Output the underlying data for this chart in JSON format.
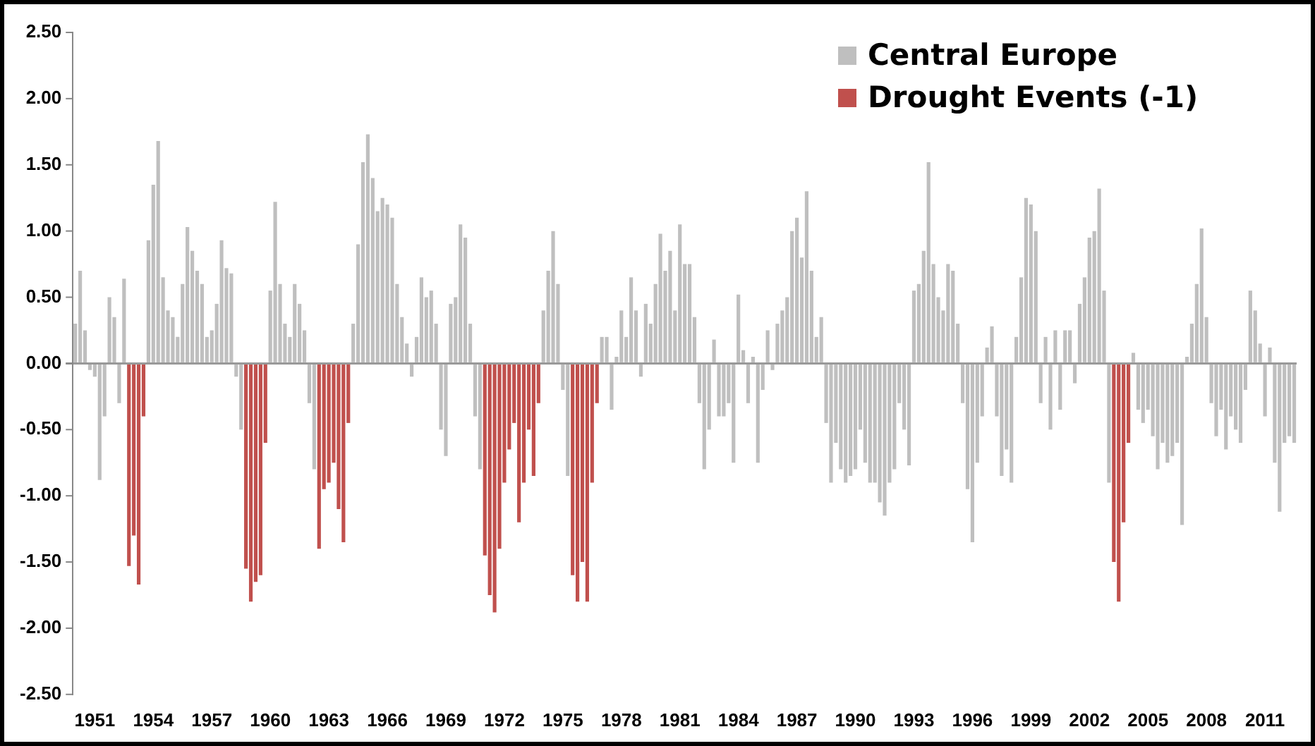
{
  "chart_data": {
    "type": "bar",
    "categories": [
      null,
      null,
      null,
      null,
      "1951",
      null,
      null,
      null,
      null,
      null,
      null,
      null,
      null,
      null,
      null,
      null,
      "1954",
      null,
      null,
      null,
      null,
      null,
      null,
      null,
      null,
      null,
      null,
      null,
      "1957",
      null,
      null,
      null,
      null,
      null,
      null,
      null,
      null,
      null,
      null,
      null,
      "1960",
      null,
      null,
      null,
      null,
      null,
      null,
      null,
      null,
      null,
      null,
      null,
      "1963",
      null,
      null,
      null,
      null,
      null,
      null,
      null,
      null,
      null,
      null,
      null,
      "1966",
      null,
      null,
      null,
      null,
      null,
      null,
      null,
      null,
      null,
      null,
      null,
      "1969",
      null,
      null,
      null,
      null,
      null,
      null,
      null,
      null,
      null,
      null,
      null,
      "1972",
      null,
      null,
      null,
      null,
      null,
      null,
      null,
      null,
      null,
      null,
      null,
      "1975",
      null,
      null,
      null,
      null,
      null,
      null,
      null,
      null,
      null,
      null,
      null,
      "1978",
      null,
      null,
      null,
      null,
      null,
      null,
      null,
      null,
      null,
      null,
      null,
      "1981",
      null,
      null,
      null,
      null,
      null,
      null,
      null,
      null,
      null,
      null,
      null,
      "1984",
      null,
      null,
      null,
      null,
      null,
      null,
      null,
      null,
      null,
      null,
      null,
      "1987",
      null,
      null,
      null,
      null,
      null,
      null,
      null,
      null,
      null,
      null,
      null,
      "1990",
      null,
      null,
      null,
      null,
      null,
      null,
      null,
      null,
      null,
      null,
      null,
      "1993",
      null,
      null,
      null,
      null,
      null,
      null,
      null,
      null,
      null,
      null,
      null,
      "1996",
      null,
      null,
      null,
      null,
      null,
      null,
      null,
      null,
      null,
      null,
      null,
      "1999",
      null,
      null,
      null,
      null,
      null,
      null,
      null,
      null,
      null,
      null,
      null,
      "2002",
      null,
      null,
      null,
      null,
      null,
      null,
      null,
      null,
      null,
      null,
      null,
      "2005",
      null,
      null,
      null,
      null,
      null,
      null,
      null,
      null,
      null,
      null,
      null,
      "2008",
      null,
      null,
      null,
      null,
      null,
      null,
      null,
      null,
      null,
      null,
      null,
      "2011",
      null,
      null,
      null,
      null,
      null,
      null
    ],
    "series": [
      {
        "name": "Central Europe",
        "color": "#bfbfbf",
        "values": [
          0.3,
          0.7,
          0.25,
          -0.05,
          -0.1,
          -0.88,
          -0.4,
          0.5,
          0.35,
          -0.3,
          0.64,
          null,
          null,
          null,
          null,
          0.93,
          1.35,
          1.68,
          0.65,
          0.4,
          0.35,
          0.2,
          0.6,
          1.03,
          0.85,
          0.7,
          0.6,
          0.2,
          0.25,
          0.45,
          0.93,
          0.72,
          0.68,
          -0.1,
          -0.5,
          null,
          null,
          null,
          null,
          null,
          0.55,
          1.22,
          0.6,
          0.3,
          0.2,
          0.6,
          0.45,
          0.25,
          -0.3,
          -0.8,
          null,
          null,
          null,
          null,
          null,
          null,
          null,
          0.3,
          0.9,
          1.52,
          1.73,
          1.4,
          1.15,
          1.25,
          1.2,
          1.1,
          0.6,
          0.35,
          0.15,
          -0.1,
          0.2,
          0.65,
          0.5,
          0.55,
          0.3,
          -0.5,
          -0.7,
          0.45,
          0.5,
          1.05,
          0.95,
          0.3,
          -0.4,
          -0.8,
          null,
          null,
          null,
          null,
          null,
          null,
          null,
          null,
          null,
          null,
          null,
          null,
          0.4,
          0.7,
          1.0,
          0.6,
          -0.2,
          -0.85,
          null,
          null,
          null,
          null,
          null,
          null,
          0.2,
          0.2,
          -0.35,
          0.05,
          0.4,
          0.2,
          0.65,
          0.4,
          -0.1,
          0.45,
          0.3,
          0.6,
          0.98,
          0.7,
          0.85,
          0.4,
          1.05,
          0.75,
          0.75,
          0.35,
          -0.3,
          -0.8,
          -0.5,
          0.18,
          -0.4,
          -0.4,
          -0.3,
          -0.75,
          0.52,
          0.1,
          -0.3,
          0.05,
          -0.75,
          -0.2,
          0.25,
          -0.05,
          0.3,
          0.4,
          0.5,
          1.0,
          1.1,
          0.8,
          1.3,
          0.7,
          0.2,
          0.35,
          -0.45,
          -0.9,
          -0.6,
          -0.8,
          -0.9,
          -0.85,
          -0.8,
          -0.5,
          -0.75,
          -0.9,
          -0.9,
          -1.05,
          -1.15,
          -0.9,
          -0.8,
          -0.3,
          -0.5,
          -0.77,
          0.55,
          0.6,
          0.85,
          1.52,
          0.75,
          0.5,
          0.4,
          0.75,
          0.7,
          0.3,
          -0.3,
          -0.95,
          -1.35,
          -0.75,
          -0.4,
          0.12,
          0.28,
          -0.4,
          -0.85,
          -0.65,
          -0.9,
          0.2,
          0.65,
          1.25,
          1.2,
          1.0,
          -0.3,
          0.2,
          -0.5,
          0.25,
          -0.35,
          0.25,
          0.25,
          -0.15,
          0.45,
          0.65,
          0.95,
          1.0,
          1.32,
          0.55,
          -0.9,
          null,
          null,
          null,
          null,
          0.08,
          -0.35,
          -0.45,
          -0.35,
          -0.55,
          -0.8,
          -0.6,
          -0.75,
          -0.7,
          -0.6,
          -1.22,
          0.05,
          0.3,
          0.6,
          1.02,
          0.35,
          -0.3,
          -0.55,
          -0.35,
          -0.65,
          -0.4,
          -0.5,
          -0.6,
          -0.2,
          0.55,
          0.4,
          0.15,
          -0.4,
          0.12,
          -0.75,
          -1.12,
          -0.6,
          -0.55,
          -0.6
        ]
      },
      {
        "name": "Drought Events (-1)",
        "color": "#c0504d",
        "values": [
          null,
          null,
          null,
          null,
          null,
          null,
          null,
          null,
          null,
          null,
          null,
          -1.53,
          -1.3,
          -1.67,
          -0.4,
          null,
          null,
          null,
          null,
          null,
          null,
          null,
          null,
          null,
          null,
          null,
          null,
          null,
          null,
          null,
          null,
          null,
          null,
          null,
          null,
          -1.55,
          -1.8,
          -1.65,
          -1.6,
          -0.6,
          null,
          null,
          null,
          null,
          null,
          null,
          null,
          null,
          null,
          null,
          -1.4,
          -0.95,
          -0.9,
          -0.75,
          -1.1,
          -1.35,
          -0.45,
          null,
          null,
          null,
          null,
          null,
          null,
          null,
          null,
          null,
          null,
          null,
          null,
          null,
          null,
          null,
          null,
          null,
          null,
          null,
          null,
          null,
          null,
          null,
          null,
          null,
          null,
          null,
          -1.45,
          -1.75,
          -1.88,
          -1.4,
          -0.9,
          -0.65,
          -0.45,
          -1.2,
          -0.9,
          -0.5,
          -0.85,
          -0.3,
          null,
          null,
          null,
          null,
          null,
          null,
          -1.6,
          -1.8,
          -1.5,
          -1.8,
          -0.9,
          -0.3,
          null,
          null,
          null,
          null,
          null,
          null,
          null,
          null,
          null,
          null,
          null,
          null,
          null,
          null,
          null,
          null,
          null,
          null,
          null,
          null,
          null,
          null,
          null,
          null,
          null,
          null,
          null,
          null,
          null,
          null,
          null,
          null,
          null,
          null,
          null,
          null,
          null,
          null,
          null,
          null,
          null,
          null,
          null,
          null,
          null,
          null,
          null,
          null,
          null,
          null,
          null,
          null,
          null,
          null,
          null,
          null,
          null,
          null,
          null,
          null,
          null,
          null,
          null,
          null,
          null,
          null,
          null,
          null,
          null,
          null,
          null,
          null,
          null,
          null,
          null,
          null,
          null,
          null,
          null,
          null,
          null,
          null,
          null,
          null,
          null,
          null,
          null,
          null,
          null,
          null,
          null,
          null,
          null,
          null,
          null,
          null,
          null,
          null,
          null,
          null,
          null,
          null,
          null,
          null,
          null,
          -1.5,
          -1.8,
          -1.2,
          -0.6,
          null,
          null,
          null,
          null,
          null,
          null,
          null,
          null,
          null,
          null,
          null,
          null,
          null,
          null,
          null,
          null,
          null,
          null,
          null,
          null,
          null,
          null,
          null,
          null,
          null,
          null,
          null,
          null,
          null,
          null,
          null,
          null,
          null,
          null
        ]
      }
    ],
    "ylim": [
      -2.5,
      2.5
    ],
    "yticks": [
      {
        "value": 2.5,
        "label": "2.50"
      },
      {
        "value": 2,
        "label": "2.00"
      },
      {
        "value": 1.5,
        "label": "1.50"
      },
      {
        "value": 1,
        "label": "1.00"
      },
      {
        "value": 0.5,
        "label": "0.50"
      },
      {
        "value": 0,
        "label": "0.00"
      },
      {
        "value": -0.5,
        "label": "-0.50"
      },
      {
        "value": -1,
        "label": "-1.00"
      },
      {
        "value": -1.5,
        "label": "-1.50"
      },
      {
        "value": -2,
        "label": "-2.00"
      },
      {
        "value": -2.5,
        "label": "-2.50"
      }
    ],
    "legend": "top right"
  }
}
